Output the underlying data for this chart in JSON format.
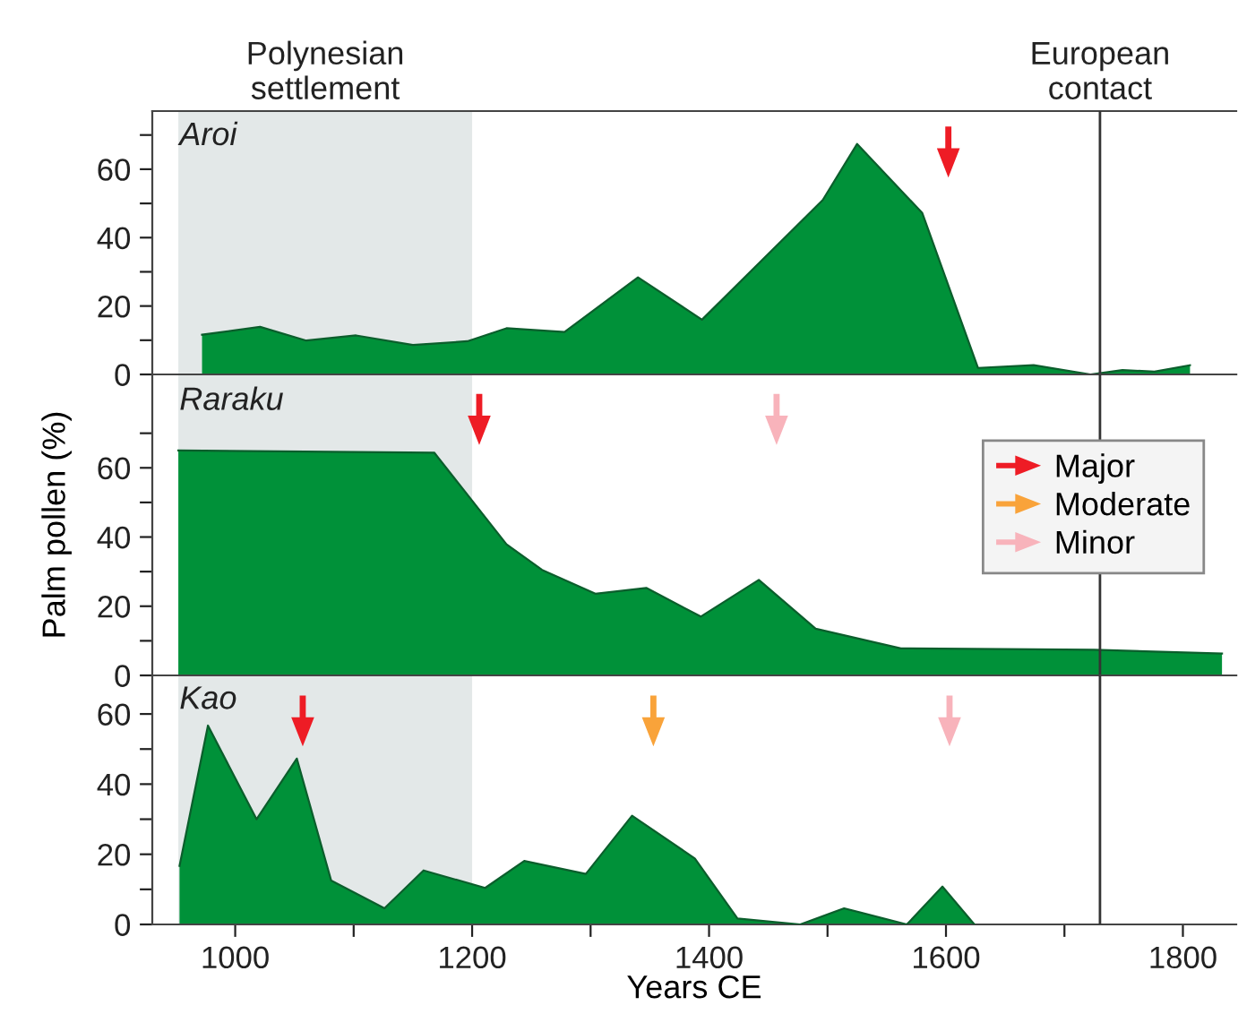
{
  "chart_data": [
    {
      "type": "area",
      "title": "Aroi",
      "xlim": [
        930,
        1845
      ],
      "ylim": [
        0,
        77
      ],
      "yticks": [
        0,
        {
          "value": 10,
          "label": null
        },
        20,
        {
          "value": 30,
          "label": null
        },
        40,
        {
          "value": 50,
          "label": null
        },
        60,
        {
          "value": 70,
          "label": null
        }
      ],
      "tick_labels": "y",
      "legend": false,
      "grid": false,
      "bands": [
        {
          "axis": "x",
          "from": 952,
          "to": 1200,
          "label": "Polynesian\nsettlement",
          "color": "#e3e8e8"
        }
      ],
      "ref_lines": [
        {
          "axis": "x",
          "value": 1730,
          "label": "European\ncontact",
          "color": "#333333"
        }
      ],
      "series": [
        {
          "color": "#009139",
          "x": [
            972,
            1021,
            1060,
            1102,
            1150,
            1196,
            1229,
            1278,
            1340,
            1394,
            1496,
            1525,
            1580,
            1627,
            1674,
            1722,
            1749,
            1776,
            1806
          ],
          "values": [
            11.6,
            13.9,
            9.9,
            11.4,
            8.6,
            9.7,
            13.5,
            12.4,
            28.4,
            16,
            51,
            67.4,
            47.2,
            1.9,
            2.7,
            0,
            1.3,
            0.8,
            2.7
          ]
        },
        {
          "type": "scatter",
          "marker": "triangle",
          "color": "#ee1c25",
          "x": [
            1602
          ],
          "values": [
            65
          ]
        }
      ]
    },
    {
      "type": "area",
      "title": "Raraku",
      "xlim": [
        930,
        1845
      ],
      "ylim": [
        0,
        87
      ],
      "yticks": [
        0,
        {
          "value": 10,
          "label": null
        },
        20,
        {
          "value": 30,
          "label": null
        },
        40,
        {
          "value": 50,
          "label": null
        },
        60,
        {
          "value": 70,
          "label": null
        }
      ],
      "tick_labels": "y",
      "legend": "right",
      "grid": false,
      "ylabel": "Palm pollen (%)",
      "bands": [
        {
          "axis": "x",
          "from": 952,
          "to": 1200,
          "color": "#e3e8e8"
        }
      ],
      "ref_lines": [
        {
          "axis": "x",
          "value": 1730,
          "color": "#333333"
        }
      ],
      "series": [
        {
          "color": "#009139",
          "x": [
            952,
            1168,
            1229,
            1259,
            1304,
            1347,
            1393,
            1442,
            1490,
            1562,
            1725,
            1833
          ],
          "values": [
            65,
            64.4,
            37.9,
            30.5,
            23.6,
            25.3,
            17,
            27.6,
            13.5,
            7.8,
            7.4,
            6.3
          ]
        },
        {
          "type": "scatter",
          "name": "Major",
          "marker": "triangle",
          "color": "#ee1c25",
          "x": [
            1206
          ],
          "values": [
            74
          ]
        },
        {
          "type": "scatter",
          "name": "Moderate",
          "marker": "triangle",
          "color": "#f9a33a"
        },
        {
          "type": "scatter",
          "name": "Minor",
          "marker": "triangle",
          "color": "#f8b3bb",
          "x": [
            1457
          ],
          "values": [
            74
          ]
        }
      ]
    },
    {
      "type": "area",
      "title": "Kao",
      "xlabel": "Years CE",
      "xlim": [
        930,
        1845
      ],
      "ylim": [
        0,
        71
      ],
      "xticks": [
        1000,
        {
          "value": 1100,
          "label": null
        },
        1200,
        {
          "value": 1300,
          "label": null
        },
        1400,
        {
          "value": 1500,
          "label": null
        },
        1600,
        {
          "value": 1700,
          "label": null
        },
        1800
      ],
      "yticks": [
        0,
        {
          "value": 10,
          "label": null
        },
        20,
        {
          "value": 30,
          "label": null
        },
        40,
        {
          "value": 50,
          "label": null
        },
        60
      ],
      "legend": false,
      "grid": false,
      "bands": [
        {
          "axis": "x",
          "from": 952,
          "to": 1200,
          "color": "#e3e8e8"
        }
      ],
      "ref_lines": [
        {
          "axis": "x",
          "value": 1730,
          "color": "#333333"
        }
      ],
      "series": [
        {
          "color": "#009139",
          "x": [
            953,
            977,
            1018,
            1052,
            1081,
            1126,
            1159,
            1211,
            1244,
            1296,
            1335,
            1388,
            1424,
            1477,
            1514,
            1567,
            1597,
            1624
          ],
          "values": [
            16.7,
            56.7,
            30,
            47.3,
            12.5,
            4.6,
            15.4,
            10.4,
            18.1,
            14.4,
            31,
            18.8,
            1.7,
            0,
            4.6,
            0,
            10.8,
            0
          ]
        },
        {
          "type": "scatter",
          "marker": "triangle",
          "color": "#ee1c25",
          "x": [
            1057
          ],
          "values": [
            58
          ]
        },
        {
          "type": "scatter",
          "marker": "triangle",
          "color": "#f9a33a",
          "x": [
            1353
          ],
          "values": [
            58
          ]
        },
        {
          "type": "scatter",
          "marker": "triangle",
          "color": "#f8b3bb",
          "x": [
            1603
          ],
          "values": [
            58
          ]
        }
      ]
    }
  ]
}
